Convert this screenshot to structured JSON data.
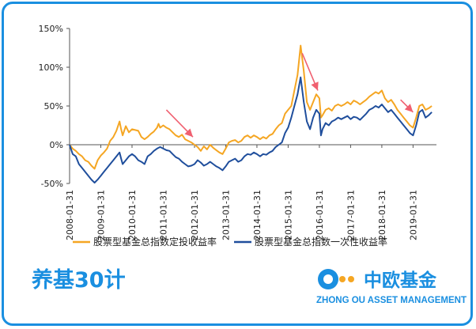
{
  "chart_data": {
    "type": "line",
    "ylim": [
      -50,
      150
    ],
    "yticks": [
      -50,
      0,
      50,
      100,
      150
    ],
    "ytick_labels": [
      "-50%",
      "0%",
      "50%",
      "100%",
      "150%"
    ],
    "xlim": [
      2008.0,
      2019.75
    ],
    "xticks": [
      2008,
      2009,
      2010,
      2011,
      2012,
      2013,
      2014,
      2015,
      2016,
      2017,
      2018,
      2019
    ],
    "xtick_labels": [
      "2008-01-31",
      "2009-01-31",
      "2010-01-31",
      "2011-01-31",
      "2012-01-31",
      "2013-01-31",
      "2014-01-31",
      "2015-01-31",
      "2016-01-31",
      "2017-01-31",
      "2018-01-31",
      "2019-01-31"
    ],
    "grid": false,
    "legend_position": "bottom",
    "series": [
      {
        "name": "股票型基金总指数定投收益率",
        "color": "#f5a623",
        "points": [
          [
            2008.0,
            0
          ],
          [
            2008.1,
            -5
          ],
          [
            2008.2,
            -8
          ],
          [
            2008.3,
            -12
          ],
          [
            2008.4,
            -15
          ],
          [
            2008.5,
            -20
          ],
          [
            2008.6,
            -22
          ],
          [
            2008.7,
            -27
          ],
          [
            2008.8,
            -31
          ],
          [
            2008.9,
            -20
          ],
          [
            2009.0,
            -14
          ],
          [
            2009.1,
            -10
          ],
          [
            2009.2,
            -5
          ],
          [
            2009.3,
            5
          ],
          [
            2009.4,
            10
          ],
          [
            2009.5,
            18
          ],
          [
            2009.6,
            30
          ],
          [
            2009.65,
            20
          ],
          [
            2009.7,
            12
          ],
          [
            2009.8,
            24
          ],
          [
            2009.9,
            16
          ],
          [
            2010.0,
            20
          ],
          [
            2010.1,
            19
          ],
          [
            2010.2,
            18
          ],
          [
            2010.3,
            10
          ],
          [
            2010.4,
            7
          ],
          [
            2010.5,
            10
          ],
          [
            2010.6,
            14
          ],
          [
            2010.7,
            17
          ],
          [
            2010.8,
            22
          ],
          [
            2010.85,
            27
          ],
          [
            2010.9,
            22
          ],
          [
            2011.0,
            25
          ],
          [
            2011.1,
            22
          ],
          [
            2011.2,
            20
          ],
          [
            2011.3,
            16
          ],
          [
            2011.4,
            12
          ],
          [
            2011.5,
            10
          ],
          [
            2011.6,
            13
          ],
          [
            2011.7,
            7
          ],
          [
            2011.8,
            5
          ],
          [
            2011.9,
            3
          ],
          [
            2012.0,
            0
          ],
          [
            2012.1,
            -3
          ],
          [
            2012.2,
            -8
          ],
          [
            2012.3,
            -2
          ],
          [
            2012.4,
            -6
          ],
          [
            2012.5,
            0
          ],
          [
            2012.6,
            -4
          ],
          [
            2012.7,
            -7
          ],
          [
            2012.8,
            -10
          ],
          [
            2012.9,
            -12
          ],
          [
            2013.0,
            -5
          ],
          [
            2013.1,
            3
          ],
          [
            2013.2,
            5
          ],
          [
            2013.3,
            6
          ],
          [
            2013.4,
            3
          ],
          [
            2013.5,
            5
          ],
          [
            2013.6,
            10
          ],
          [
            2013.7,
            12
          ],
          [
            2013.8,
            9
          ],
          [
            2013.9,
            12
          ],
          [
            2014.0,
            10
          ],
          [
            2014.1,
            7
          ],
          [
            2014.2,
            10
          ],
          [
            2014.3,
            8
          ],
          [
            2014.4,
            12
          ],
          [
            2014.5,
            14
          ],
          [
            2014.6,
            20
          ],
          [
            2014.7,
            25
          ],
          [
            2014.8,
            28
          ],
          [
            2014.9,
            40
          ],
          [
            2015.0,
            45
          ],
          [
            2015.1,
            50
          ],
          [
            2015.2,
            70
          ],
          [
            2015.3,
            90
          ],
          [
            2015.4,
            128
          ],
          [
            2015.5,
            95
          ],
          [
            2015.6,
            55
          ],
          [
            2015.7,
            45
          ],
          [
            2015.8,
            55
          ],
          [
            2015.9,
            65
          ],
          [
            2016.0,
            60
          ],
          [
            2016.05,
            35
          ],
          [
            2016.1,
            38
          ],
          [
            2016.2,
            45
          ],
          [
            2016.3,
            47
          ],
          [
            2016.4,
            44
          ],
          [
            2016.5,
            50
          ],
          [
            2016.6,
            52
          ],
          [
            2016.7,
            50
          ],
          [
            2016.8,
            52
          ],
          [
            2016.9,
            55
          ],
          [
            2017.0,
            52
          ],
          [
            2017.1,
            57
          ],
          [
            2017.2,
            55
          ],
          [
            2017.3,
            52
          ],
          [
            2017.4,
            55
          ],
          [
            2017.5,
            58
          ],
          [
            2017.6,
            62
          ],
          [
            2017.7,
            65
          ],
          [
            2017.8,
            68
          ],
          [
            2017.9,
            66
          ],
          [
            2018.0,
            70
          ],
          [
            2018.1,
            60
          ],
          [
            2018.2,
            55
          ],
          [
            2018.3,
            58
          ],
          [
            2018.4,
            52
          ],
          [
            2018.5,
            45
          ],
          [
            2018.6,
            40
          ],
          [
            2018.7,
            35
          ],
          [
            2018.8,
            30
          ],
          [
            2018.9,
            25
          ],
          [
            2019.0,
            22
          ],
          [
            2019.1,
            35
          ],
          [
            2019.2,
            50
          ],
          [
            2019.3,
            52
          ],
          [
            2019.4,
            45
          ],
          [
            2019.5,
            47
          ],
          [
            2019.6,
            50
          ]
        ]
      },
      {
        "name": "股票型基金总指数一次性收益率",
        "color": "#1f4e9c",
        "points": [
          [
            2008.0,
            0
          ],
          [
            2008.1,
            -12
          ],
          [
            2008.2,
            -15
          ],
          [
            2008.3,
            -25
          ],
          [
            2008.4,
            -30
          ],
          [
            2008.5,
            -35
          ],
          [
            2008.6,
            -40
          ],
          [
            2008.7,
            -45
          ],
          [
            2008.8,
            -49
          ],
          [
            2008.9,
            -45
          ],
          [
            2009.0,
            -40
          ],
          [
            2009.1,
            -35
          ],
          [
            2009.2,
            -30
          ],
          [
            2009.3,
            -25
          ],
          [
            2009.4,
            -20
          ],
          [
            2009.5,
            -15
          ],
          [
            2009.6,
            -10
          ],
          [
            2009.65,
            -18
          ],
          [
            2009.7,
            -25
          ],
          [
            2009.8,
            -20
          ],
          [
            2009.9,
            -15
          ],
          [
            2010.0,
            -12
          ],
          [
            2010.1,
            -15
          ],
          [
            2010.2,
            -20
          ],
          [
            2010.3,
            -22
          ],
          [
            2010.4,
            -25
          ],
          [
            2010.5,
            -15
          ],
          [
            2010.6,
            -12
          ],
          [
            2010.7,
            -8
          ],
          [
            2010.8,
            -5
          ],
          [
            2010.9,
            -3
          ],
          [
            2011.0,
            -5
          ],
          [
            2011.1,
            -7
          ],
          [
            2011.2,
            -8
          ],
          [
            2011.3,
            -12
          ],
          [
            2011.4,
            -16
          ],
          [
            2011.5,
            -18
          ],
          [
            2011.6,
            -22
          ],
          [
            2011.7,
            -25
          ],
          [
            2011.8,
            -28
          ],
          [
            2011.9,
            -27
          ],
          [
            2012.0,
            -25
          ],
          [
            2012.1,
            -20
          ],
          [
            2012.2,
            -23
          ],
          [
            2012.3,
            -27
          ],
          [
            2012.4,
            -25
          ],
          [
            2012.5,
            -22
          ],
          [
            2012.6,
            -25
          ],
          [
            2012.7,
            -28
          ],
          [
            2012.8,
            -30
          ],
          [
            2012.9,
            -33
          ],
          [
            2013.0,
            -28
          ],
          [
            2013.1,
            -22
          ],
          [
            2013.2,
            -20
          ],
          [
            2013.3,
            -18
          ],
          [
            2013.4,
            -22
          ],
          [
            2013.5,
            -20
          ],
          [
            2013.6,
            -15
          ],
          [
            2013.7,
            -12
          ],
          [
            2013.8,
            -13
          ],
          [
            2013.9,
            -10
          ],
          [
            2014.0,
            -12
          ],
          [
            2014.1,
            -15
          ],
          [
            2014.2,
            -12
          ],
          [
            2014.3,
            -13
          ],
          [
            2014.4,
            -10
          ],
          [
            2014.5,
            -8
          ],
          [
            2014.6,
            -3
          ],
          [
            2014.7,
            0
          ],
          [
            2014.8,
            3
          ],
          [
            2014.9,
            15
          ],
          [
            2015.0,
            22
          ],
          [
            2015.1,
            35
          ],
          [
            2015.2,
            50
          ],
          [
            2015.3,
            65
          ],
          [
            2015.4,
            87
          ],
          [
            2015.5,
            55
          ],
          [
            2015.6,
            30
          ],
          [
            2015.7,
            20
          ],
          [
            2015.8,
            35
          ],
          [
            2015.9,
            45
          ],
          [
            2016.0,
            40
          ],
          [
            2016.05,
            12
          ],
          [
            2016.1,
            20
          ],
          [
            2016.2,
            28
          ],
          [
            2016.3,
            25
          ],
          [
            2016.4,
            30
          ],
          [
            2016.5,
            32
          ],
          [
            2016.6,
            35
          ],
          [
            2016.7,
            33
          ],
          [
            2016.8,
            35
          ],
          [
            2016.9,
            37
          ],
          [
            2017.0,
            33
          ],
          [
            2017.1,
            36
          ],
          [
            2017.2,
            35
          ],
          [
            2017.3,
            32
          ],
          [
            2017.4,
            36
          ],
          [
            2017.5,
            40
          ],
          [
            2017.6,
            45
          ],
          [
            2017.7,
            47
          ],
          [
            2017.8,
            50
          ],
          [
            2017.9,
            48
          ],
          [
            2018.0,
            52
          ],
          [
            2018.1,
            47
          ],
          [
            2018.2,
            42
          ],
          [
            2018.3,
            45
          ],
          [
            2018.4,
            40
          ],
          [
            2018.5,
            35
          ],
          [
            2018.6,
            30
          ],
          [
            2018.7,
            25
          ],
          [
            2018.8,
            20
          ],
          [
            2018.9,
            15
          ],
          [
            2019.0,
            12
          ],
          [
            2019.1,
            25
          ],
          [
            2019.2,
            42
          ],
          [
            2019.3,
            45
          ],
          [
            2019.4,
            35
          ],
          [
            2019.5,
            38
          ],
          [
            2019.6,
            42
          ]
        ]
      }
    ],
    "annotations": [
      {
        "type": "arrow",
        "color": "#f06070",
        "from": [
          2011.1,
          45
        ],
        "to": [
          2011.95,
          10
        ]
      },
      {
        "type": "arrow",
        "color": "#f06070",
        "from": [
          2015.45,
          118
        ],
        "to": [
          2015.95,
          70
        ]
      },
      {
        "type": "arrow",
        "color": "#f06070",
        "from": [
          2018.6,
          58
        ],
        "to": [
          2019.0,
          42
        ]
      }
    ]
  },
  "logos": {
    "left_cn": "养基30计",
    "right_cn": "中欧基金",
    "right_en": "ZHONG OU ASSET MANAGEMENT"
  },
  "colors": {
    "frame": "#1a8fe0",
    "brand": "#1a8fe0",
    "logo_green": "#1a8fe0",
    "logo_orange": "#f5a623"
  }
}
